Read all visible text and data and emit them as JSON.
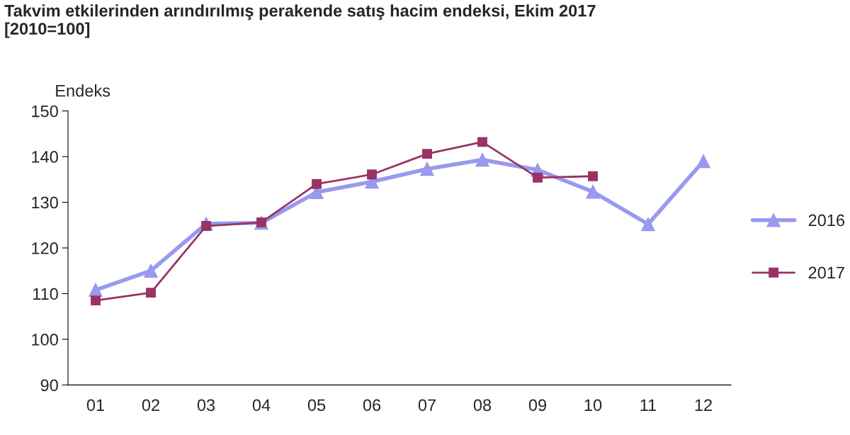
{
  "chart_data": {
    "type": "line",
    "title": "Takvim etkilerinden arındırılmış perakende satış hacim endeksi, Ekim 2017\n[2010=100]",
    "ylabel": "Endeks",
    "categories": [
      "01",
      "02",
      "03",
      "04",
      "05",
      "06",
      "07",
      "08",
      "09",
      "10",
      "11",
      "12"
    ],
    "series": [
      {
        "name": "2016",
        "color": "#9999ee",
        "marker": "triangle",
        "values": [
          110.8,
          115.0,
          125.3,
          125.5,
          132.2,
          134.5,
          137.3,
          139.3,
          137.1,
          132.3,
          125.2,
          139.0
        ]
      },
      {
        "name": "2017",
        "color": "#993366",
        "marker": "square",
        "values": [
          108.5,
          110.2,
          124.8,
          125.6,
          134.0,
          136.1,
          140.6,
          143.2,
          135.4,
          135.7,
          null,
          null
        ]
      }
    ],
    "ylim": [
      90,
      150
    ],
    "yticks": [
      90,
      100,
      110,
      120,
      130,
      140,
      150
    ],
    "grid": false,
    "legend": "right"
  }
}
